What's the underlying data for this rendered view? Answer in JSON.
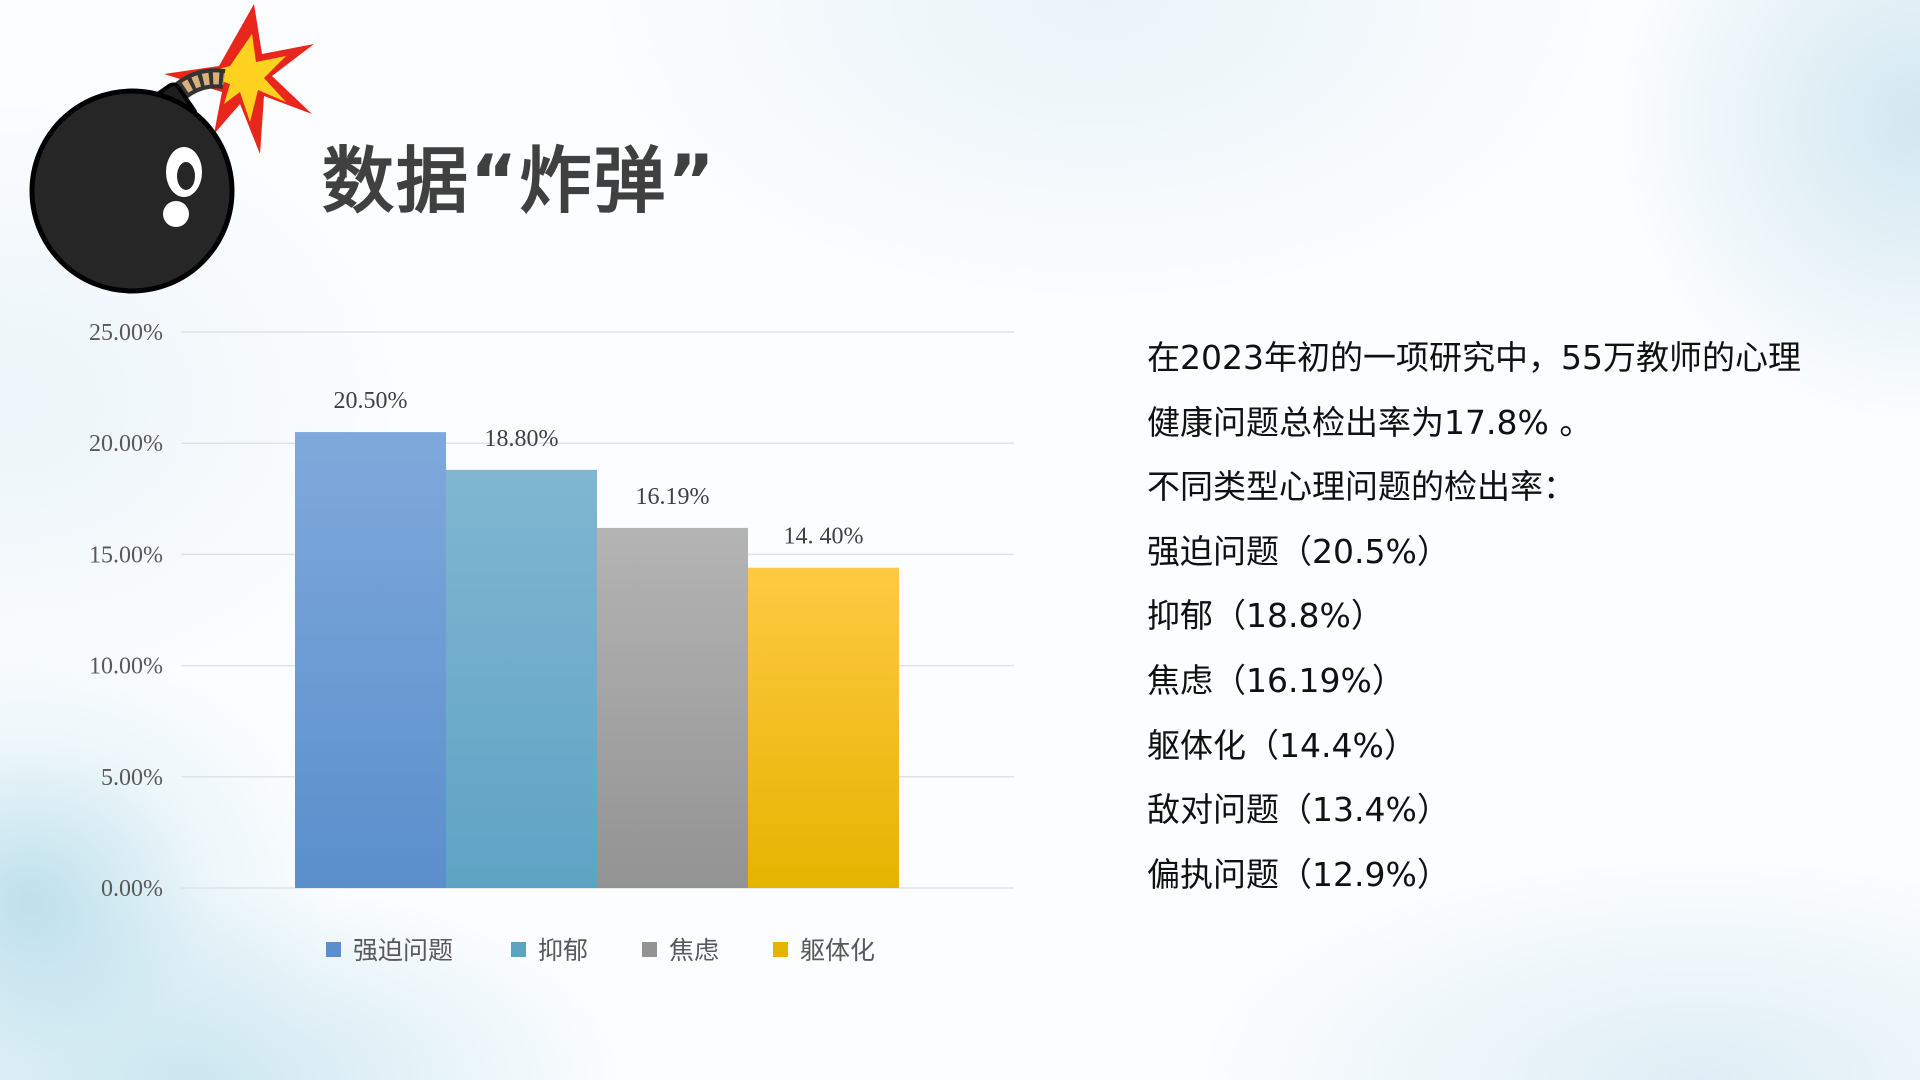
{
  "title": "数据“炸弹”",
  "chart_data": {
    "type": "bar",
    "title": "",
    "xlabel": "",
    "ylabel": "",
    "categories": [
      "强迫问题",
      "抑郁",
      "焦虑",
      "躯体化"
    ],
    "values": [
      20.5,
      18.8,
      16.19,
      14.4
    ],
    "data_labels": [
      "20.50%",
      "18.80%",
      "16.19%",
      "14. 40%"
    ],
    "ylim": [
      0,
      25
    ],
    "yticks": [
      "0.00%",
      "5.00%",
      "10.00%",
      "15.00%",
      "20.00%",
      "25.00%"
    ],
    "grid": true,
    "legend": "bottom",
    "colors": [
      [
        "#7fa9db",
        "#5a8fcc"
      ],
      [
        "#80b6d1",
        "#5fa3c4"
      ],
      [
        "#b4b4b4",
        "#939393"
      ],
      [
        "#ffc943",
        "#e5b400"
      ]
    ]
  },
  "description": {
    "lines": [
      "在2023年初的一项研究中，55万教师的心理",
      "健康问题总检出率为17.8% 。",
      " 不同类型心理问题的检出率：",
      "强迫问题（20.5%）",
      "抑郁（18.8%）",
      "焦虑（16.19%）",
      "躯体化（14.4%）",
      "敌对问题（13.4%）",
      "偏执问题（12.9%）"
    ]
  }
}
